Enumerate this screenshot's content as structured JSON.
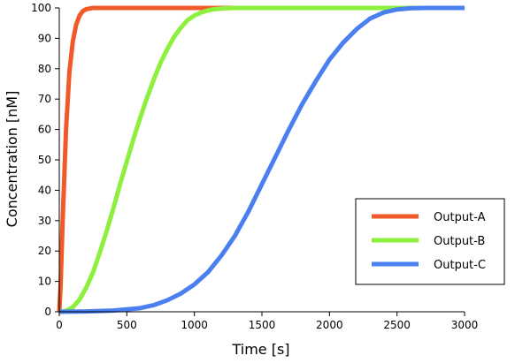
{
  "chart_data": {
    "type": "line",
    "title": "",
    "xlabel": "Time [s]",
    "ylabel": "Concentration [nM]",
    "xlim": [
      0,
      3000
    ],
    "ylim": [
      0,
      100
    ],
    "x_ticks": [
      0,
      500,
      1000,
      1500,
      2000,
      2500,
      3000
    ],
    "y_ticks": [
      0,
      10,
      20,
      30,
      40,
      50,
      60,
      70,
      80,
      90,
      100
    ],
    "grid": false,
    "legend_position": "bottom-right",
    "series": [
      {
        "name": "Output-A",
        "color": "#f05a28",
        "x": [
          0,
          10,
          25,
          50,
          75,
          100,
          125,
          150,
          175,
          200,
          225,
          250,
          300,
          500,
          1000,
          1500,
          2000,
          2500,
          3000
        ],
        "y": [
          0,
          9,
          30,
          60,
          79,
          89,
          94.5,
          97.5,
          99,
          99.6,
          99.8,
          100,
          100,
          100,
          100,
          100,
          100,
          100,
          100
        ]
      },
      {
        "name": "Output-B",
        "color": "#8cf03c",
        "x": [
          0,
          50,
          100,
          150,
          200,
          250,
          300,
          350,
          400,
          450,
          500,
          550,
          600,
          650,
          700,
          750,
          800,
          850,
          900,
          950,
          1000,
          1050,
          1100,
          1150,
          1200,
          1300,
          1500,
          2000,
          2500,
          3000
        ],
        "y": [
          0,
          0.3,
          1.5,
          4,
          8,
          13,
          19.5,
          26.5,
          34,
          42,
          49.5,
          57,
          64,
          70.5,
          76.5,
          82,
          86.5,
          90.5,
          93.5,
          96,
          97.5,
          98.5,
          99.2,
          99.6,
          99.8,
          100,
          100,
          100,
          100,
          100
        ]
      },
      {
        "name": "Output-C",
        "color": "#4a7ff0",
        "x": [
          0,
          200,
          400,
          600,
          700,
          800,
          900,
          1000,
          1100,
          1200,
          1300,
          1400,
          1500,
          1600,
          1700,
          1800,
          1900,
          2000,
          2100,
          2200,
          2300,
          2400,
          2500,
          2600,
          2700,
          3000
        ],
        "y": [
          0,
          0.1,
          0.4,
          1.2,
          2.2,
          3.8,
          6,
          9,
          13,
          18.5,
          25,
          33,
          42,
          51,
          60,
          68.5,
          76,
          83,
          88.5,
          93,
          96.5,
          98.5,
          99.5,
          99.9,
          100,
          100
        ]
      }
    ]
  }
}
